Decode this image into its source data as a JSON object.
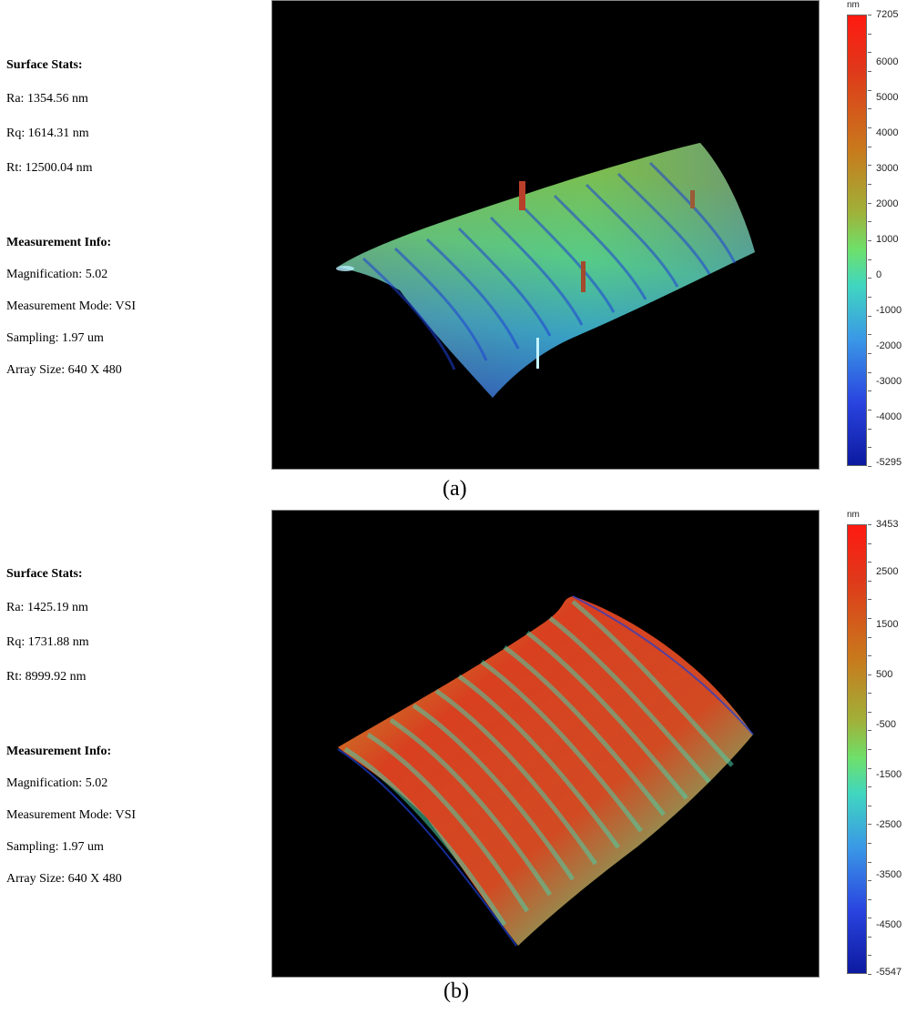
{
  "panels": [
    {
      "caption": "(a)",
      "surface_stats": {
        "heading": "Surface Stats:",
        "ra": "Ra: 1354.56 nm",
        "rq": "Rq: 1614.31 nm",
        "rt": "Rt: 12500.04 nm"
      },
      "measurement_info": {
        "heading": "Measurement Info:",
        "magnification": "Magnification: 5.02",
        "mode": "Measurement Mode: VSI",
        "sampling": "Sampling: 1.97 um",
        "array_size": "Array Size: 640 X 480"
      },
      "colorbar": {
        "unit": "nm",
        "max": "7205",
        "min": "-5295",
        "labels": [
          "6000",
          "5000",
          "4000",
          "3000",
          "2000",
          "1000",
          "0",
          "-1000",
          "-2000",
          "-3000",
          "-4000"
        ],
        "range": [
          -5295,
          7205
        ]
      }
    },
    {
      "caption": "(b)",
      "surface_stats": {
        "heading": "Surface Stats:",
        "ra": "Ra: 1425.19 nm",
        "rq": "Rq: 1731.88 nm",
        "rt": "Rt: 8999.92 nm"
      },
      "measurement_info": {
        "heading": "Measurement Info:",
        "magnification": "Magnification: 5.02",
        "mode": "Measurement Mode: VSI",
        "sampling": "Sampling: 1.97 um",
        "array_size": "Array Size: 640 X 480"
      },
      "colorbar": {
        "unit": "nm",
        "max": "3453",
        "min": "-5547",
        "labels": [
          "2500",
          "1500",
          "500",
          "-500",
          "-1500",
          "-2500",
          "-3500",
          "-4500"
        ],
        "range": [
          -5547,
          3453
        ]
      }
    }
  ],
  "colors": {
    "plot_background": "#000000",
    "scale_high": "#ff1a10",
    "scale_mid": "#6ee06a",
    "scale_low": "#0c1aa0"
  }
}
